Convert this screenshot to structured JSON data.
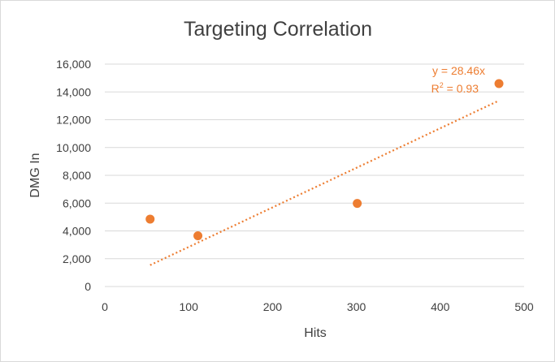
{
  "chart_data": {
    "type": "scatter",
    "title": "Targeting Correlation",
    "xlabel": "Hits",
    "ylabel": "DMG In",
    "xlim": [
      0,
      500
    ],
    "ylim": [
      0,
      16000
    ],
    "x_ticks": [
      0,
      100,
      200,
      300,
      400,
      500
    ],
    "y_ticks": [
      0,
      2000,
      4000,
      6000,
      8000,
      10000,
      12000,
      14000,
      16000
    ],
    "x_tick_labels": [
      "0",
      "100",
      "200",
      "300",
      "400",
      "500"
    ],
    "y_tick_labels": [
      "0",
      "2,000",
      "4,000",
      "6,000",
      "8,000",
      "10,000",
      "12,000",
      "14,000",
      "16,000"
    ],
    "grid": true,
    "series": [
      {
        "points": [
          {
            "x": 54,
            "y": 4850
          },
          {
            "x": 111,
            "y": 3650
          },
          {
            "x": 301,
            "y": 5980
          },
          {
            "x": 470,
            "y": 14600
          }
        ],
        "color": "#ed7d31"
      }
    ],
    "trendline": {
      "type": "linear-through-origin",
      "slope": 28.46,
      "x_range": [
        54,
        470
      ],
      "equation": "y = 28.46x",
      "r2_prefix": "R",
      "r2_sup": "2",
      "r2_value": " = 0.93",
      "color": "#ed7d31"
    },
    "colors": {
      "grid": "#d9d9d9",
      "text": "#404040",
      "marker": "#ed7d31"
    }
  }
}
